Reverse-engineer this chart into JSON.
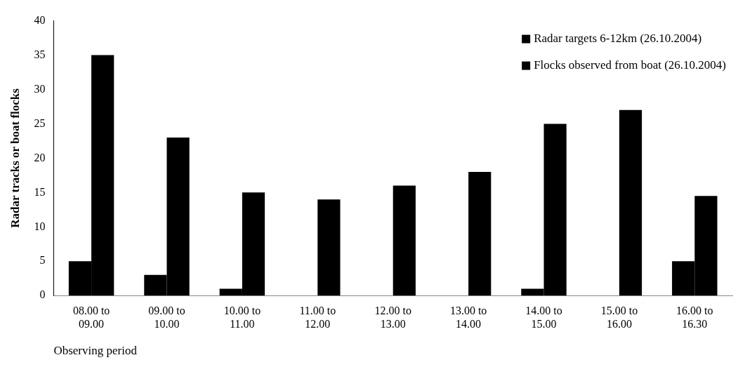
{
  "chart_data": {
    "type": "bar",
    "xlabel": "Observing period",
    "ylabel": "Radar tracks or boat flocks",
    "categories": [
      "08.00 to 09.00",
      "09.00 to 10.00",
      "10.00 to 11.00",
      "11.00 to 12.00",
      "12.00 to 13.00",
      "13.00 to 14.00",
      "14.00 to 15.00",
      "15.00 to 16.00",
      "16.00 to 16.30"
    ],
    "series": [
      {
        "name": "Radar targets 6-12km (26.10.2004)",
        "color": "#000000",
        "values": [
          5,
          3,
          1,
          0,
          0,
          0,
          1,
          0,
          5
        ]
      },
      {
        "name": "Flocks observed from boat (26.10.2004)",
        "color": "#000000",
        "values": [
          35,
          23,
          15,
          14,
          16,
          18,
          25,
          27,
          14.5
        ]
      }
    ],
    "ylim": [
      0,
      40
    ],
    "yticks": [
      0,
      5,
      10,
      15,
      20,
      25,
      30,
      35,
      40
    ],
    "grid": false,
    "legend": "top right"
  }
}
